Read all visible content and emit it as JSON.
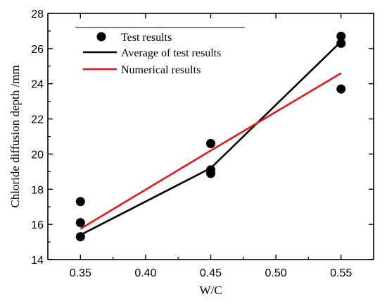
{
  "chart_data": {
    "type": "line",
    "xlabel": "W/C",
    "ylabel": "Chloride diffusion depth /mm",
    "xlim": [
      0.325,
      0.575
    ],
    "ylim": [
      14,
      28
    ],
    "x_ticks": [
      0.35,
      0.4,
      0.45,
      0.5,
      0.55
    ],
    "x_tick_labels": [
      "0.35",
      "0.40",
      "0.45",
      "0.50",
      "0.55"
    ],
    "y_ticks": [
      14,
      16,
      18,
      20,
      22,
      24,
      26,
      28
    ],
    "y_tick_labels": [
      "14",
      "16",
      "18",
      "20",
      "22",
      "24",
      "26",
      "28"
    ],
    "legend_position": "top-left",
    "series": [
      {
        "name": "Test results",
        "kind": "scatter",
        "color": "#000000",
        "points": [
          [
            0.35,
            17.3
          ],
          [
            0.35,
            16.1
          ],
          [
            0.35,
            15.3
          ],
          [
            0.45,
            20.6
          ],
          [
            0.45,
            19.1
          ],
          [
            0.45,
            18.9
          ],
          [
            0.55,
            26.7
          ],
          [
            0.55,
            26.3
          ],
          [
            0.55,
            23.7
          ]
        ]
      },
      {
        "name": "Average of test results",
        "kind": "line",
        "color": "#000000",
        "points": [
          [
            0.35,
            15.4
          ],
          [
            0.45,
            19.2
          ],
          [
            0.55,
            26.4
          ]
        ]
      },
      {
        "name": "Numerical results",
        "kind": "line",
        "color": "#e8161b",
        "points": [
          [
            0.35,
            15.75
          ],
          [
            0.45,
            20.2
          ],
          [
            0.55,
            24.6
          ]
        ]
      }
    ]
  }
}
